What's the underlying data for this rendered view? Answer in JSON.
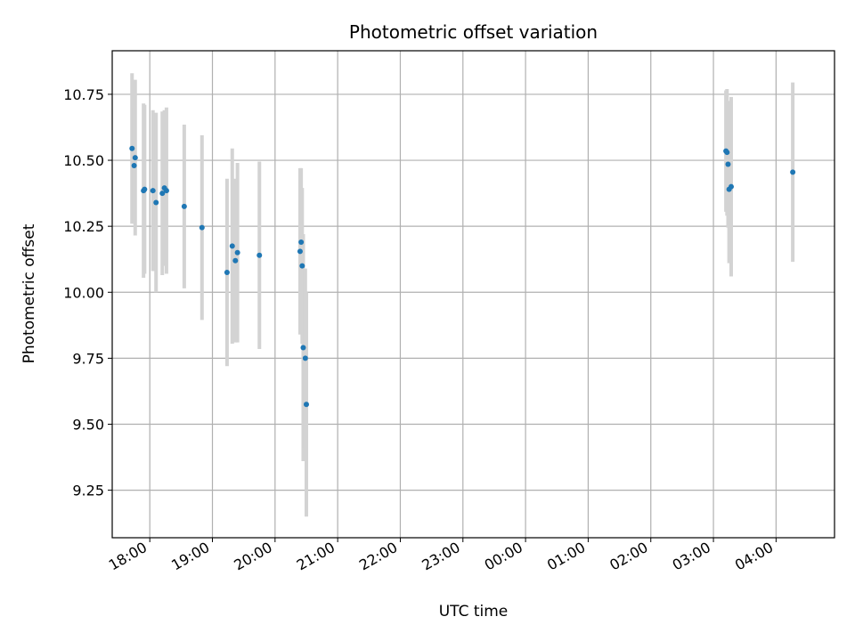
{
  "chart_data": {
    "type": "scatter",
    "title": "Photometric offset variation",
    "xlabel": "UTC time",
    "ylabel": "Photometric offset",
    "x_unit": "UTC datetime (data starts the evening of day 1 and spans past midnight)",
    "x_range": [
      "17:24",
      "04:56"
    ],
    "ylim": [
      9.07,
      10.915
    ],
    "grid": true,
    "x_ticks": [
      "18:00",
      "19:00",
      "20:00",
      "21:00",
      "22:00",
      "23:00",
      "00:00",
      "01:00",
      "02:00",
      "03:00",
      "04:00"
    ],
    "y_ticks": [
      "9.25",
      "9.50",
      "9.75",
      "10.00",
      "10.25",
      "10.50",
      "10.75"
    ],
    "colors": {
      "point": "#1f77b4",
      "errorbar": "#d3d3d3",
      "grid": "#b0b0b0"
    },
    "points": [
      {
        "x": "17:43",
        "y": 10.545,
        "err": 0.285
      },
      {
        "x": "17:45",
        "y": 10.48,
        "err": 0.22
      },
      {
        "x": "17:46",
        "y": 10.51,
        "err": 0.295
      },
      {
        "x": "17:54",
        "y": 10.385,
        "err": 0.33
      },
      {
        "x": "17:55",
        "y": 10.39,
        "err": 0.32
      },
      {
        "x": "18:03",
        "y": 10.385,
        "err": 0.305
      },
      {
        "x": "18:06",
        "y": 10.34,
        "err": 0.34
      },
      {
        "x": "18:12",
        "y": 10.375,
        "err": 0.31
      },
      {
        "x": "18:14",
        "y": 10.395,
        "err": 0.295
      },
      {
        "x": "18:16",
        "y": 10.385,
        "err": 0.315
      },
      {
        "x": "18:33",
        "y": 10.325,
        "err": 0.31
      },
      {
        "x": "18:50",
        "y": 10.245,
        "err": 0.35
      },
      {
        "x": "19:14",
        "y": 10.075,
        "err": 0.355
      },
      {
        "x": "19:19",
        "y": 10.175,
        "err": 0.37
      },
      {
        "x": "19:22",
        "y": 10.12,
        "err": 0.31
      },
      {
        "x": "19:24",
        "y": 10.15,
        "err": 0.34
      },
      {
        "x": "19:45",
        "y": 10.14,
        "err": 0.355
      },
      {
        "x": "20:24",
        "y": 10.155,
        "err": 0.315
      },
      {
        "x": "20:25",
        "y": 10.19,
        "err": 0.28
      },
      {
        "x": "20:26",
        "y": 10.1,
        "err": 0.295
      },
      {
        "x": "20:27",
        "y": 9.79,
        "err": 0.43
      },
      {
        "x": "20:29",
        "y": 9.75,
        "err": 0.34
      },
      {
        "x": "20:30",
        "y": 9.575,
        "err": 0.425
      },
      {
        "x": "03:12",
        "y": 10.535,
        "err": 0.23
      },
      {
        "x": "03:13",
        "y": 10.53,
        "err": 0.24
      },
      {
        "x": "03:14",
        "y": 10.485,
        "err": 0.24
      },
      {
        "x": "03:15",
        "y": 10.39,
        "err": 0.28
      },
      {
        "x": "03:17",
        "y": 10.4,
        "err": 0.34
      },
      {
        "x": "04:16",
        "y": 10.455,
        "err": 0.34
      }
    ]
  }
}
